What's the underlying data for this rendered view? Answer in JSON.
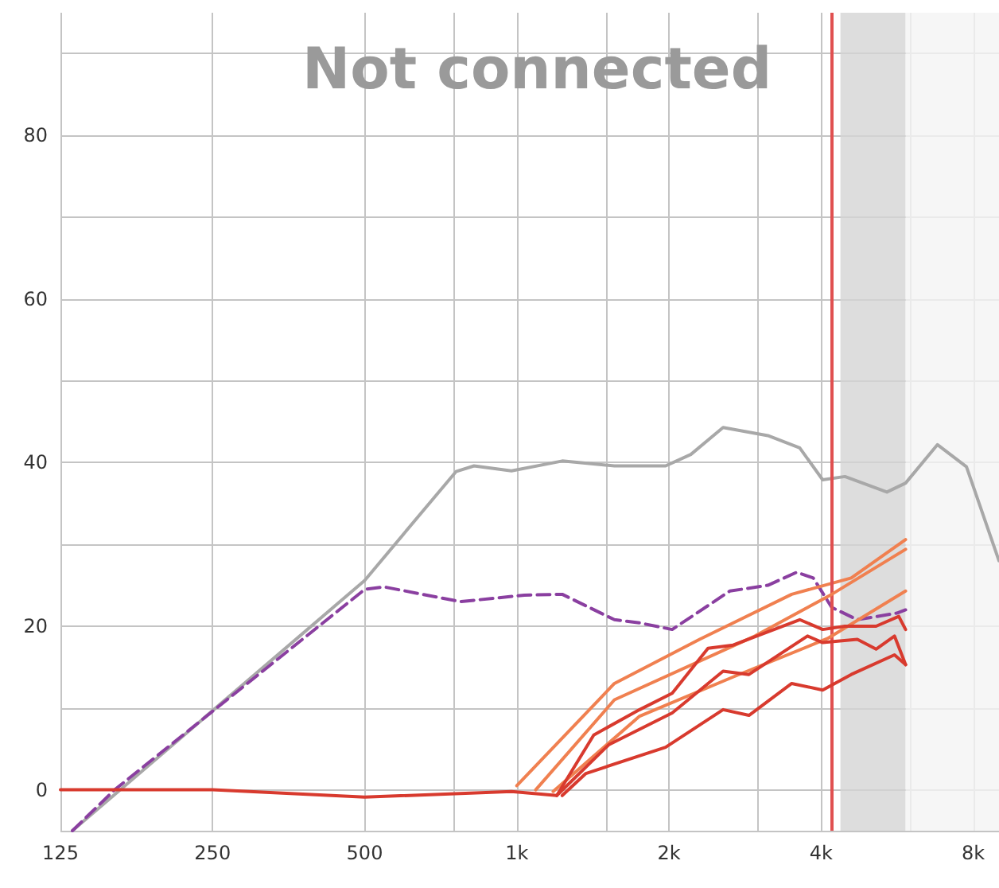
{
  "chart_data": {
    "type": "line",
    "annotations": [
      "Not connected"
    ],
    "xlim": [
      125,
      9000
    ],
    "ylim": [
      -5,
      95
    ],
    "log": "x",
    "grid": true,
    "marker": "none",
    "xticks": [
      125,
      250,
      500,
      {
        "value": 750,
        "label": null
      },
      {
        "value": 1000,
        "label": "1k"
      },
      {
        "value": 1500,
        "label": null
      },
      {
        "value": 2000,
        "label": "2k"
      },
      {
        "value": 3000,
        "label": null
      },
      {
        "value": 4000,
        "label": "4k"
      },
      {
        "value": 6000,
        "label": null
      },
      {
        "value": 8000,
        "label": "8k"
      }
    ],
    "yticks": [
      {
        "value": -5,
        "label": null
      },
      0,
      {
        "value": 10,
        "label": null
      },
      20,
      {
        "value": 30,
        "label": null
      },
      40,
      {
        "value": 50,
        "label": null
      },
      60,
      {
        "value": 70,
        "label": null
      },
      80,
      {
        "value": 90,
        "label": null
      }
    ],
    "ref_lines": [
      {
        "axis": "x",
        "value": 4200,
        "label": null,
        "color": "#e05050"
      }
    ],
    "bands": [
      {
        "axis": "x",
        "from": 4370,
        "to": 5880,
        "label": null,
        "color": "#d4d4d4"
      },
      {
        "axis": "x",
        "from": 5880,
        "to": 9000,
        "label": null,
        "color": "#f4f4f4"
      }
    ],
    "series": [
      {
        "color": "#a8a8a8",
        "x": [
          132,
          500,
          758,
          823,
          976,
          1230,
          1560,
          1970,
          2210,
          2560,
          3140,
          3630,
          4030,
          4460,
          5400,
          5880,
          6800,
          7760,
          9000
        ],
        "values": [
          -5,
          25.6,
          38.9,
          39.6,
          39,
          40.2,
          39.6,
          39.6,
          41,
          44.3,
          43.3,
          41.8,
          37.9,
          38.3,
          36.4,
          37.5,
          42.2,
          39.5,
          28
        ]
      },
      {
        "color": "#8a3fa0",
        "line_style": "dashed",
        "x": [
          132,
          160,
          500,
          547,
          774,
          1035,
          1230,
          1560,
          1750,
          2030,
          2640,
          3140,
          3580,
          3860,
          4200,
          4720,
          5650,
          5880
        ],
        "values": [
          -5,
          0,
          24.5,
          24.8,
          23,
          23.8,
          23.9,
          20.8,
          20.4,
          19.6,
          24.3,
          25,
          26.6,
          25.9,
          22.3,
          20.8,
          21.6,
          22
        ]
      },
      {
        "color": "#f08050",
        "x": [
          1000,
          1560,
          2300,
          3500,
          4590,
          5880
        ],
        "values": [
          0.5,
          13,
          18.4,
          23.9,
          25.9,
          30.6
        ]
      },
      {
        "color": "#f08050",
        "x": [
          1090,
          1560,
          2960,
          4200,
          5880
        ],
        "values": [
          0,
          11,
          18.8,
          23.9,
          29.4
        ]
      },
      {
        "color": "#f08050",
        "x": [
          1180,
          1750,
          2680,
          4120,
          5880
        ],
        "values": [
          -0.2,
          9,
          13.8,
          18.5,
          24.3
        ]
      },
      {
        "color": "#d83a2e",
        "x": [
          125,
          250,
          500,
          976,
          1200,
          1420,
          1750,
          2030,
          2390,
          2680,
          3630,
          4030,
          4460,
          5140,
          5700,
          5880
        ],
        "values": [
          0,
          0,
          -0.9,
          -0.2,
          -0.7,
          6.7,
          9.8,
          11.8,
          17.3,
          17.7,
          20.8,
          19.6,
          20,
          20,
          21.2,
          19.6
        ]
      },
      {
        "color": "#d83a2e",
        "x": [
          1200,
          1520,
          2030,
          2560,
          2880,
          3760,
          4030,
          4720,
          5140,
          5590,
          5880
        ],
        "values": [
          -0.7,
          5.5,
          9.4,
          14.5,
          14.1,
          18.8,
          18,
          18.4,
          17.2,
          18.8,
          15.3
        ]
      },
      {
        "color": "#d83a2e",
        "x": [
          1230,
          1370,
          1970,
          2560,
          2880,
          3500,
          4030,
          4590,
          5590,
          5880
        ],
        "values": [
          -0.7,
          2,
          5.2,
          9.8,
          9.1,
          13,
          12.2,
          14.1,
          16.5,
          15.3
        ]
      }
    ]
  }
}
